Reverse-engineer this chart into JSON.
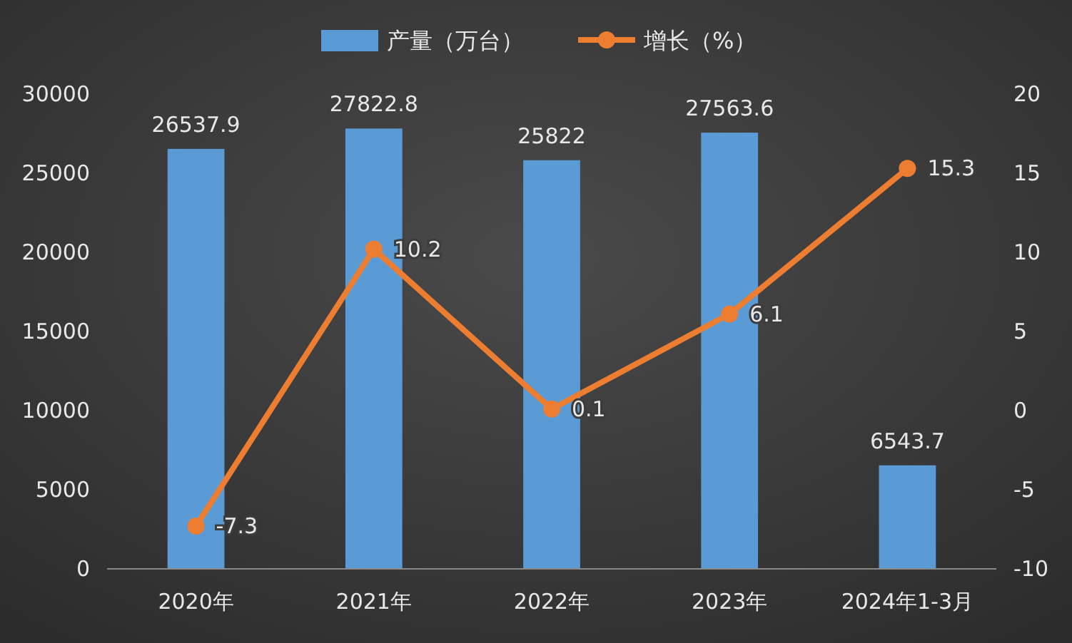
{
  "chart_data": {
    "type": "bar",
    "categories": [
      "2020年",
      "2021年",
      "2022年",
      "2023年",
      "2024年1-3月"
    ],
    "series": [
      {
        "name": "产量（万台）",
        "color": "#5b9bd5",
        "values": [
          26537.9,
          27822.8,
          25822,
          27563.6,
          6543.7
        ]
      },
      {
        "name": "增长（%）",
        "type": "line",
        "axis": "y2",
        "color": "#ed7d31",
        "values": [
          -7.3,
          10.2,
          0.1,
          6.1,
          15.3
        ]
      }
    ],
    "ylim": [
      0,
      30000
    ],
    "yticks": [
      0,
      5000,
      10000,
      15000,
      20000,
      25000,
      30000
    ],
    "y2lim": [
      -10,
      20
    ],
    "y2ticks": [
      -10,
      -5,
      0,
      5,
      10,
      15,
      20
    ],
    "data_labels": true,
    "legend": "top",
    "marker": "circle",
    "grid": false
  }
}
